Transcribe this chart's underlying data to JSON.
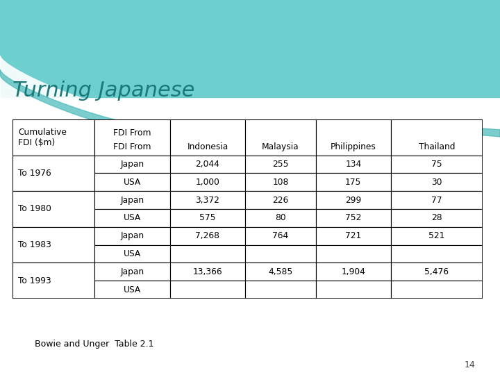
{
  "title": "Turning Japanese",
  "title_color": "#1a7a7a",
  "title_fontsize": 22,
  "footnote": "Bowie and Unger  Table 2.1",
  "page_number": "14",
  "table": {
    "col_headers": [
      "Cumulative\nFDI ($m)",
      "FDI From",
      "Indonesia",
      "Malaysia",
      "Philippines",
      "Thailand"
    ],
    "rows": [
      {
        "period": "To 1976",
        "japan_row": [
          "Japan",
          "2,044",
          "255",
          "134",
          "75"
        ],
        "usa_row": [
          "USA",
          "1,000",
          "108",
          "175",
          "30"
        ]
      },
      {
        "period": "To 1980",
        "japan_row": [
          "Japan",
          "3,372",
          "226",
          "299",
          "77"
        ],
        "usa_row": [
          "USA",
          "575",
          "80",
          "752",
          "28"
        ]
      },
      {
        "period": "To 1983",
        "japan_row": [
          "Japan",
          "7,268",
          "764",
          "721",
          "521"
        ],
        "usa_row": [
          "USA",
          "",
          "",
          "",
          ""
        ]
      },
      {
        "period": "To 1993",
        "japan_row": [
          "Japan",
          "13,366",
          "4,585",
          "1,904",
          "5,476"
        ],
        "usa_row": [
          "USA",
          "",
          "",
          "",
          ""
        ]
      }
    ]
  },
  "wave_teal": "#6ecfcf",
  "wave_teal2": "#45b8b8",
  "bg_color": "#ffffff",
  "text_color": "#000000"
}
